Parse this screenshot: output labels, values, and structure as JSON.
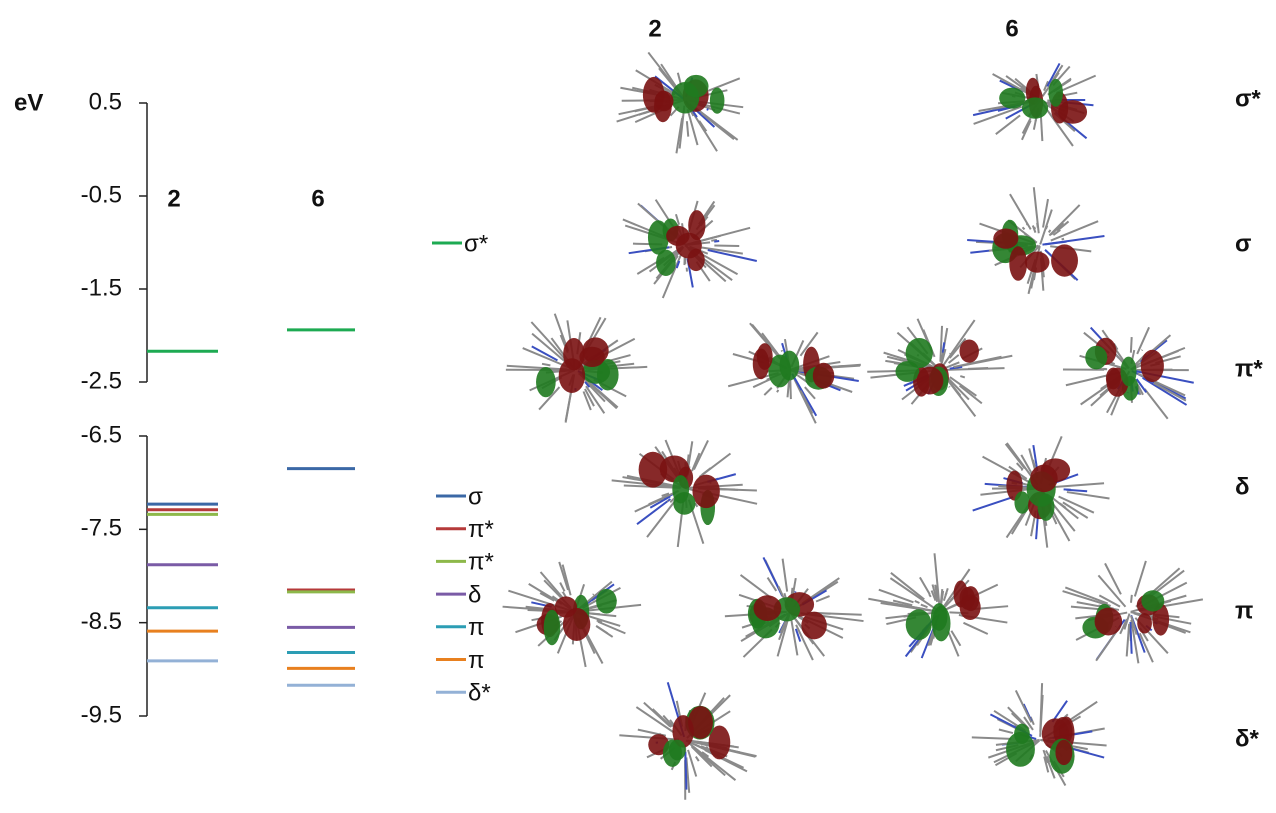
{
  "chart_data": {
    "type": "energy_level",
    "y_label": "eV",
    "categories": [
      "2",
      "6"
    ],
    "ylim_upper": [
      -2.5,
      0.5
    ],
    "yticks_upper": [
      0.5,
      -0.5,
      -1.5,
      -2.5
    ],
    "ylim_lower": [
      -9.5,
      -6.5
    ],
    "yticks_lower": [
      -6.5,
      -7.5,
      -8.5,
      -9.5
    ],
    "series": [
      {
        "name": "σ*",
        "color": "#1daa52",
        "values": [
          -2.17,
          -1.94
        ]
      },
      {
        "name": "σ",
        "color": "#3b68a6",
        "values": [
          -7.23,
          -6.85
        ]
      },
      {
        "name": "π*",
        "color": "#b53a3a",
        "values": [
          -7.29,
          -8.15
        ]
      },
      {
        "name": "π*",
        "color": "#8db84a",
        "values": [
          -7.34,
          -8.17
        ]
      },
      {
        "name": "δ",
        "color": "#7a5ba6",
        "values": [
          -7.88,
          -8.55
        ]
      },
      {
        "name": "π",
        "color": "#2c9db4",
        "values": [
          -8.34,
          -8.82
        ]
      },
      {
        "name": "π",
        "color": "#e8801f",
        "values": [
          -8.59,
          -8.99
        ]
      },
      {
        "name": "δ*",
        "color": "#93b1d6",
        "values": [
          -8.91,
          -9.17
        ]
      }
    ],
    "orbital_panel": {
      "row_labels": [
        "σ*",
        "σ",
        "π*",
        "δ",
        "π",
        "δ*"
      ]
    }
  }
}
